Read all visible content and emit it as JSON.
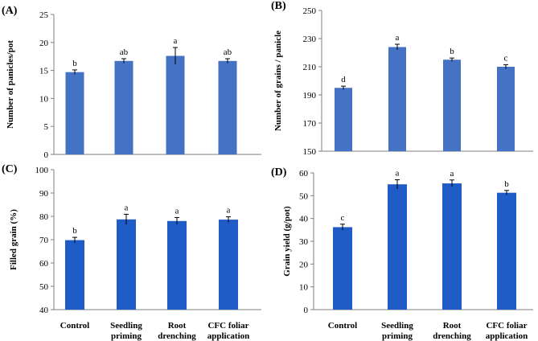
{
  "categories_lines": [
    [
      "Control"
    ],
    [
      "Seedling",
      "priming"
    ],
    [
      "Root",
      "drenching"
    ],
    [
      "CFC foliar",
      "application"
    ]
  ],
  "chart_data": [
    {
      "type": "bar",
      "panel": "(A)",
      "ylabel": "Number of panicles/pot",
      "ylim": [
        0,
        25
      ],
      "ticks": [
        0,
        5,
        10,
        15,
        20,
        25
      ],
      "categories": [
        "Control",
        "Seedling priming",
        "Root drenching",
        "CFC foliar application"
      ],
      "values": [
        14.7,
        16.7,
        17.6,
        16.7
      ],
      "errors": [
        0.4,
        0.4,
        1.5,
        0.4
      ],
      "letters": [
        "b",
        "ab",
        "a",
        "ab"
      ],
      "bar_color": "#4472c4",
      "show_categories": false
    },
    {
      "type": "bar",
      "panel": "(B)",
      "ylabel": "Number of grains / panicle",
      "ylim": [
        150,
        250
      ],
      "ticks": [
        150,
        170,
        190,
        210,
        230,
        250
      ],
      "categories": [
        "Control",
        "Seedling priming",
        "Root drenching",
        "CFC foliar application"
      ],
      "values": [
        195,
        224,
        215,
        210
      ],
      "errors": [
        1.2,
        2.0,
        1.2,
        1.5
      ],
      "letters": [
        "d",
        "a",
        "b",
        "c"
      ],
      "bar_color": "#4472c4",
      "show_categories": false
    },
    {
      "type": "bar",
      "panel": "(C)",
      "ylabel": "Filled grain (%)",
      "ylim": [
        40,
        100
      ],
      "ticks": [
        40,
        50,
        60,
        70,
        80,
        90,
        100
      ],
      "categories": [
        "Control",
        "Seedling priming",
        "Root drenching",
        "CFC foliar application"
      ],
      "values": [
        69.8,
        78.7,
        78.0,
        78.6
      ],
      "errors": [
        1.2,
        2.2,
        1.5,
        1.2
      ],
      "letters": [
        "b",
        "a",
        "a",
        "a"
      ],
      "bar_color": "#1f5cc8",
      "show_categories": true
    },
    {
      "type": "bar",
      "panel": "(D)",
      "ylabel": "Grain yield (g/pot)",
      "ylim": [
        0,
        60
      ],
      "ticks": [
        0,
        10,
        20,
        30,
        40,
        50,
        60
      ],
      "categories": [
        "Control",
        "Seedling priming",
        "Root drenching",
        "CFC foliar application"
      ],
      "values": [
        36.2,
        55.0,
        55.4,
        51.3
      ],
      "errors": [
        1.3,
        2.0,
        1.5,
        1.0
      ],
      "letters": [
        "c",
        "a",
        "a",
        "b"
      ],
      "bar_color": "#1f5cc8",
      "show_categories": true
    }
  ]
}
